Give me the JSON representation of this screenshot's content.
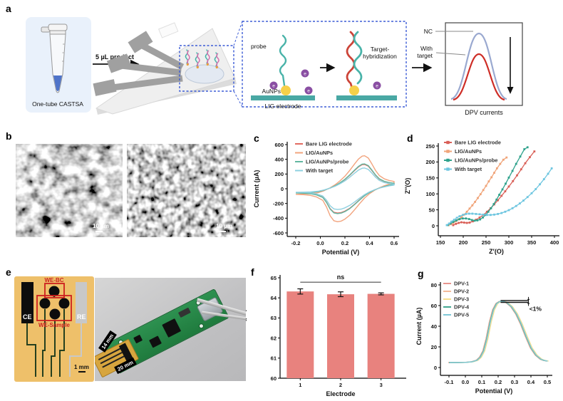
{
  "figure": {
    "panel_letters": {
      "a": "a",
      "b": "b",
      "c": "c",
      "d": "d",
      "e": "e",
      "f": "f",
      "g": "g"
    },
    "panel_a": {
      "tube_caption": "One-tube CASTSA",
      "arrow_label": "5 µL product",
      "probe_label": "probe",
      "aunps_label": "AuNPs",
      "lig_label": "LIG electrode",
      "electron": "e",
      "target_label_1": "Target-",
      "target_label_2": "hybridization",
      "nc_label": "NC",
      "with_label_1": "With",
      "with_label_2": "target",
      "dpv_label": "DPV currents"
    },
    "panel_b": {
      "scale_1": "10 µm",
      "scale_2": "10 µm"
    },
    "panel_e": {
      "ce": "CE",
      "re": "RE",
      "we_bc": "WE-BC",
      "we_sample": "WE-Sample",
      "scale": "1 mm",
      "dim_width": "14 mm",
      "dim_length": "20 mm"
    }
  },
  "colors": {
    "bare": "#e26a60",
    "aunps": "#f2a47e",
    "probe": "#62b7a1",
    "target": "#8ed0e0",
    "bar": "#e8827e",
    "sketch_nc": "#9aa9d0",
    "sketch_target": "#ce2d26",
    "lig_bar": "#49a8a4",
    "gold": "#f6d049",
    "purple": "#8a4fa3",
    "dashed_box": "#3b5bd6"
  },
  "chart_data": [
    {
      "id": "c",
      "type": "cv",
      "title": "",
      "xlabel": "Potential (V)",
      "ylabel": "Current (µA)",
      "xlim": [
        -0.2,
        0.6
      ],
      "ylim": [
        -600,
        600
      ],
      "xticks": [
        {
          "v": -0.2,
          "l": "-0.2"
        },
        {
          "v": 0.0,
          "l": "0.0"
        },
        {
          "v": 0.2,
          "l": "0.2"
        },
        {
          "v": 0.4,
          "l": "0.4"
        },
        {
          "v": 0.6,
          "l": "0.6"
        }
      ],
      "yticks": [
        {
          "v": 600,
          "l": "600"
        },
        {
          "v": 400,
          "l": "400"
        },
        {
          "v": 200,
          "l": "200"
        },
        {
          "v": 0,
          "l": "0"
        },
        {
          "v": -200,
          "l": "-200"
        },
        {
          "v": -400,
          "l": "-400"
        },
        {
          "v": -600,
          "l": "-600"
        }
      ],
      "legend_position": "top-left",
      "shape": [
        [
          -0.2,
          -0.17
        ],
        [
          -0.14,
          -0.165
        ],
        [
          -0.08,
          -0.15
        ],
        [
          -0.02,
          -0.12
        ],
        [
          0.03,
          -0.06
        ],
        [
          0.08,
          0.03
        ],
        [
          0.12,
          0.12
        ],
        [
          0.16,
          0.24
        ],
        [
          0.2,
          0.38
        ],
        [
          0.24,
          0.56
        ],
        [
          0.28,
          0.76
        ],
        [
          0.31,
          0.9
        ],
        [
          0.34,
          0.99
        ],
        [
          0.36,
          1.0
        ],
        [
          0.39,
          0.93
        ],
        [
          0.42,
          0.75
        ],
        [
          0.45,
          0.55
        ],
        [
          0.48,
          0.4
        ],
        [
          0.52,
          0.3
        ],
        [
          0.56,
          0.25
        ],
        [
          0.6,
          0.22
        ],
        [
          0.6,
          0.18
        ],
        [
          0.56,
          0.14
        ],
        [
          0.52,
          0.09
        ],
        [
          0.48,
          0.03
        ],
        [
          0.44,
          -0.05
        ],
        [
          0.4,
          -0.15
        ],
        [
          0.36,
          -0.28
        ],
        [
          0.32,
          -0.45
        ],
        [
          0.28,
          -0.63
        ],
        [
          0.24,
          -0.8
        ],
        [
          0.2,
          -0.92
        ],
        [
          0.17,
          -0.98
        ],
        [
          0.14,
          -1.0
        ],
        [
          0.11,
          -0.97
        ],
        [
          0.08,
          -0.82
        ],
        [
          0.05,
          -0.55
        ],
        [
          0.02,
          -0.35
        ],
        [
          -0.03,
          -0.25
        ],
        [
          -0.08,
          -0.2
        ],
        [
          -0.14,
          -0.18
        ],
        [
          -0.2,
          -0.17
        ]
      ],
      "series": [
        {
          "name": "Bare LIG electrode",
          "color": "#e26a60",
          "peak_uA": 330
        },
        {
          "name": "LIG/AuNPs",
          "color": "#f2a47e",
          "peak_uA": 448
        },
        {
          "name": "LIG/AuNPs/probe",
          "color": "#62b7a1",
          "peak_uA": 338
        },
        {
          "name": "With target",
          "color": "#8ed0e0",
          "peak_uA": 282
        }
      ]
    },
    {
      "id": "d",
      "type": "nyquist",
      "title": "",
      "xlabel": "Z′(O)",
      "ylabel": "Z″(O)",
      "xlim": [
        150,
        400
      ],
      "ylim": [
        0,
        250
      ],
      "xticks": [
        {
          "v": 150,
          "l": "150"
        },
        {
          "v": 200,
          "l": "200"
        },
        {
          "v": 250,
          "l": "250"
        },
        {
          "v": 300,
          "l": "300"
        },
        {
          "v": 350,
          "l": "350"
        },
        {
          "v": 400,
          "l": "400"
        }
      ],
      "yticks": [
        {
          "v": 250,
          "l": "250"
        },
        {
          "v": 200,
          "l": "200"
        },
        {
          "v": 150,
          "l": "150"
        },
        {
          "v": 100,
          "l": "100"
        },
        {
          "v": 50,
          "l": "50"
        },
        {
          "v": 0,
          "l": "0"
        }
      ],
      "legend_position": "top-left",
      "series": [
        {
          "name": "Bare LIG electrode",
          "color": "#d95f57",
          "points": [
            [
              178,
              2
            ],
            [
              184,
              6
            ],
            [
              190,
              9
            ],
            [
              196,
              11
            ],
            [
              202,
              10
            ],
            [
              208,
              9
            ],
            [
              214,
              10
            ],
            [
              221,
              14
            ],
            [
              228,
              19
            ],
            [
              236,
              26
            ],
            [
              244,
              34
            ],
            [
              252,
              44
            ],
            [
              260,
              55
            ],
            [
              268,
              67
            ],
            [
              276,
              80
            ],
            [
              284,
              94
            ],
            [
              292,
              108
            ],
            [
              300,
              123
            ],
            [
              309,
              140
            ],
            [
              318,
              158
            ],
            [
              327,
              177
            ],
            [
              336,
              196
            ],
            [
              346,
              215
            ],
            [
              356,
              233
            ]
          ]
        },
        {
          "name": "LIG/AuNPs",
          "color": "#f0a479",
          "points": [
            [
              168,
              2
            ],
            [
              173,
              5
            ],
            [
              178,
              9
            ],
            [
              184,
              14
            ],
            [
              190,
              20
            ],
            [
              196,
              27
            ],
            [
              202,
              35
            ],
            [
              208,
              44
            ],
            [
              214,
              54
            ],
            [
              220,
              64
            ],
            [
              226,
              75
            ],
            [
              232,
              87
            ],
            [
              238,
              99
            ],
            [
              244,
              112
            ],
            [
              250,
              125
            ],
            [
              256,
              139
            ],
            [
              262,
              152
            ],
            [
              268,
              166
            ],
            [
              274,
              180
            ],
            [
              281,
              194
            ],
            [
              288,
              207
            ],
            [
              295,
              214
            ]
          ]
        },
        {
          "name": "LIG/AuNPs/probe",
          "color": "#2fa28c",
          "points": [
            [
              166,
              2
            ],
            [
              172,
              7
            ],
            [
              178,
              12
            ],
            [
              185,
              17
            ],
            [
              192,
              21
            ],
            [
              199,
              23
            ],
            [
              206,
              23
            ],
            [
              213,
              21
            ],
            [
              219,
              18
            ],
            [
              225,
              16
            ],
            [
              231,
              17
            ],
            [
              237,
              20
            ],
            [
              243,
              26
            ],
            [
              249,
              34
            ],
            [
              255,
              44
            ],
            [
              261,
              55
            ],
            [
              267,
              68
            ],
            [
              273,
              82
            ],
            [
              279,
              97
            ],
            [
              286,
              114
            ],
            [
              293,
              132
            ],
            [
              300,
              151
            ],
            [
              308,
              172
            ],
            [
              316,
              194
            ],
            [
              325,
              217
            ],
            [
              334,
              240
            ],
            [
              341,
              246
            ]
          ]
        },
        {
          "name": "With target",
          "color": "#6ec6e0",
          "points": [
            [
              164,
              2
            ],
            [
              169,
              7
            ],
            [
              174,
              13
            ],
            [
              180,
              19
            ],
            [
              186,
              25
            ],
            [
              192,
              30
            ],
            [
              199,
              34
            ],
            [
              206,
              37
            ],
            [
              213,
              38
            ],
            [
              220,
              38
            ],
            [
              228,
              37
            ],
            [
              236,
              36
            ],
            [
              244,
              35
            ],
            [
              252,
              34
            ],
            [
              260,
              34
            ],
            [
              268,
              35
            ],
            [
              276,
              37
            ],
            [
              284,
              40
            ],
            [
              292,
              44
            ],
            [
              300,
              49
            ],
            [
              308,
              55
            ],
            [
              316,
              62
            ],
            [
              324,
              70
            ],
            [
              332,
              79
            ],
            [
              341,
              90
            ],
            [
              350,
              102
            ],
            [
              359,
              115
            ],
            [
              368,
              130
            ],
            [
              377,
              146
            ],
            [
              386,
              163
            ],
            [
              394,
              180
            ]
          ]
        }
      ]
    },
    {
      "id": "f",
      "type": "bar",
      "title": "",
      "xlabel": "Electrode",
      "ylabel": "Current (µA)",
      "categories": [
        "1",
        "2",
        "3"
      ],
      "values": [
        64.32,
        64.18,
        64.2
      ],
      "errors": [
        0.13,
        0.12,
        0.05
      ],
      "bar_color": "#e8827e",
      "ylim": [
        60,
        65
      ],
      "yticks": [
        {
          "v": 65,
          "l": "65"
        },
        {
          "v": 64,
          "l": "64"
        },
        {
          "v": 63,
          "l": "63"
        },
        {
          "v": 62,
          "l": "62"
        },
        {
          "v": 61,
          "l": "61"
        },
        {
          "v": 60,
          "l": "60"
        }
      ],
      "annotation": {
        "text": "ns",
        "y": 64.78
      }
    },
    {
      "id": "g",
      "type": "dpv",
      "title": "",
      "xlabel": "Potential (V)",
      "ylabel": "Current (µA)",
      "xlim": [
        -0.1,
        0.5
      ],
      "ylim": [
        0,
        80
      ],
      "xticks": [
        {
          "v": -0.1,
          "l": "-0.1"
        },
        {
          "v": 0.0,
          "l": "0.0"
        },
        {
          "v": 0.1,
          "l": "0.1"
        },
        {
          "v": 0.2,
          "l": "0.2"
        },
        {
          "v": 0.3,
          "l": "0.3"
        },
        {
          "v": 0.4,
          "l": "0.4"
        },
        {
          "v": 0.5,
          "l": "0.5"
        }
      ],
      "yticks": [
        {
          "v": 80,
          "l": "80"
        },
        {
          "v": 60,
          "l": "60"
        },
        {
          "v": 40,
          "l": "40"
        },
        {
          "v": 20,
          "l": "20"
        },
        {
          "v": 0,
          "l": "0"
        }
      ],
      "legend_position": "top-left",
      "points": [
        [
          -0.1,
          4.8
        ],
        [
          -0.05,
          4.8
        ],
        [
          0,
          5
        ],
        [
          0.04,
          5.6
        ],
        [
          0.07,
          7
        ],
        [
          0.09,
          10
        ],
        [
          0.11,
          16
        ],
        [
          0.13,
          28
        ],
        [
          0.15,
          44
        ],
        [
          0.17,
          56
        ],
        [
          0.19,
          62
        ],
        [
          0.21,
          64
        ],
        [
          0.23,
          64.2
        ],
        [
          0.25,
          63
        ],
        [
          0.28,
          59
        ],
        [
          0.31,
          52
        ],
        [
          0.34,
          42
        ],
        [
          0.37,
          30
        ],
        [
          0.4,
          19
        ],
        [
          0.43,
          12
        ],
        [
          0.46,
          8
        ],
        [
          0.48,
          6.8
        ],
        [
          0.5,
          6.2
        ]
      ],
      "series": [
        {
          "name": "DPV-1",
          "color": "#e8958e",
          "dx": -0.004
        },
        {
          "name": "DPV-2",
          "color": "#f3bb9b",
          "dx": -0.002
        },
        {
          "name": "DPV-3",
          "color": "#f6de8e",
          "dx": 0.008
        },
        {
          "name": "DPV-4",
          "color": "#43a891",
          "dx": 0.0
        },
        {
          "name": "DPV-5",
          "color": "#7fc9d8",
          "dx": 0.002
        }
      ],
      "annotation": {
        "text": "<1%",
        "hline_y": [
          64.9,
          63.1
        ],
        "hline_x": [
          0.215,
          0.385
        ],
        "label_xy": [
          0.39,
          55
        ]
      }
    },
    {
      "id": "a_sketch",
      "type": "sketch",
      "title": "DPV currents",
      "series": [
        {
          "name": "NC",
          "color": "#9aa9d0",
          "relative_peak": "high"
        },
        {
          "name": "With target",
          "color": "#ce2d26",
          "relative_peak": "low"
        }
      ],
      "note": "DPV peak current decreases in presence of target"
    }
  ]
}
